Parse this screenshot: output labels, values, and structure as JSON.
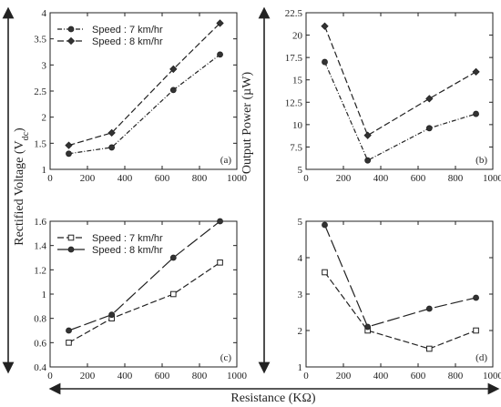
{
  "figure": {
    "left_label": "Rectified Voltage (V_dc)",
    "right_label": "Output Power (µW)",
    "bottom_label": "Resistance (KΩ)"
  },
  "chart_data": [
    {
      "id": "a",
      "type": "line",
      "panel_label": "(a)",
      "x": [
        100,
        330,
        660,
        910
      ],
      "xlim": [
        0,
        1000
      ],
      "ylim": [
        1,
        4
      ],
      "xticks": [
        0,
        200,
        400,
        600,
        800,
        1000
      ],
      "yticks": [
        1,
        1.5,
        2,
        2.5,
        3,
        3.5,
        4
      ],
      "legend_position": "top-left",
      "series": [
        {
          "name": "Speed : 7 km/hr",
          "values": [
            1.3,
            1.42,
            2.52,
            3.2
          ],
          "marker": "circle",
          "dash": "5,2,1,2"
        },
        {
          "name": "Speed : 8 km/hr",
          "values": [
            1.46,
            1.7,
            2.92,
            3.8
          ],
          "marker": "diamond",
          "dash": "7,3"
        }
      ]
    },
    {
      "id": "b",
      "type": "line",
      "panel_label": "(b)",
      "x": [
        100,
        330,
        660,
        910
      ],
      "xlim": [
        0,
        1000
      ],
      "ylim": [
        5,
        22.5
      ],
      "xticks": [
        0,
        200,
        400,
        600,
        800,
        1000
      ],
      "yticks": [
        5,
        7.5,
        10,
        12.5,
        15,
        17.5,
        20,
        22.5
      ],
      "series": [
        {
          "name": "Speed : 7 km/hr",
          "values": [
            17,
            6,
            9.6,
            11.2
          ],
          "marker": "circle",
          "dash": "5,2,1,2"
        },
        {
          "name": "Speed : 8 km/hr",
          "values": [
            21,
            8.8,
            12.9,
            15.9
          ],
          "marker": "diamond",
          "dash": "7,3"
        }
      ]
    },
    {
      "id": "c",
      "type": "line",
      "panel_label": "(c)",
      "x": [
        100,
        330,
        660,
        910
      ],
      "xlim": [
        0,
        1000
      ],
      "ylim": [
        0.4,
        1.6
      ],
      "xticks": [
        0,
        200,
        400,
        600,
        800,
        1000
      ],
      "yticks": [
        0.4,
        0.6,
        0.8,
        1,
        1.2,
        1.4,
        1.6
      ],
      "legend_position": "top-left",
      "series": [
        {
          "name": "Speed : 7 km/hr",
          "values": [
            0.6,
            0.8,
            1.0,
            1.26
          ],
          "marker": "square",
          "dash": "7,3"
        },
        {
          "name": "Speed : 8 km/hr",
          "values": [
            0.7,
            0.83,
            1.3,
            1.6
          ],
          "marker": "circle",
          "dash": "14,4"
        }
      ]
    },
    {
      "id": "d",
      "type": "line",
      "panel_label": "(d)",
      "x": [
        100,
        330,
        660,
        910
      ],
      "xlim": [
        0,
        1000
      ],
      "ylim": [
        1,
        5
      ],
      "xticks": [
        0,
        200,
        400,
        600,
        800,
        1000
      ],
      "yticks": [
        1,
        2,
        3,
        4,
        5
      ],
      "series": [
        {
          "name": "Speed : 7 km/hr",
          "values": [
            3.6,
            2.0,
            1.5,
            2.0
          ],
          "marker": "square",
          "dash": "7,3"
        },
        {
          "name": "Speed : 8 km/hr",
          "values": [
            4.9,
            2.1,
            2.6,
            2.9
          ],
          "marker": "circle",
          "dash": "14,4"
        }
      ]
    }
  ]
}
